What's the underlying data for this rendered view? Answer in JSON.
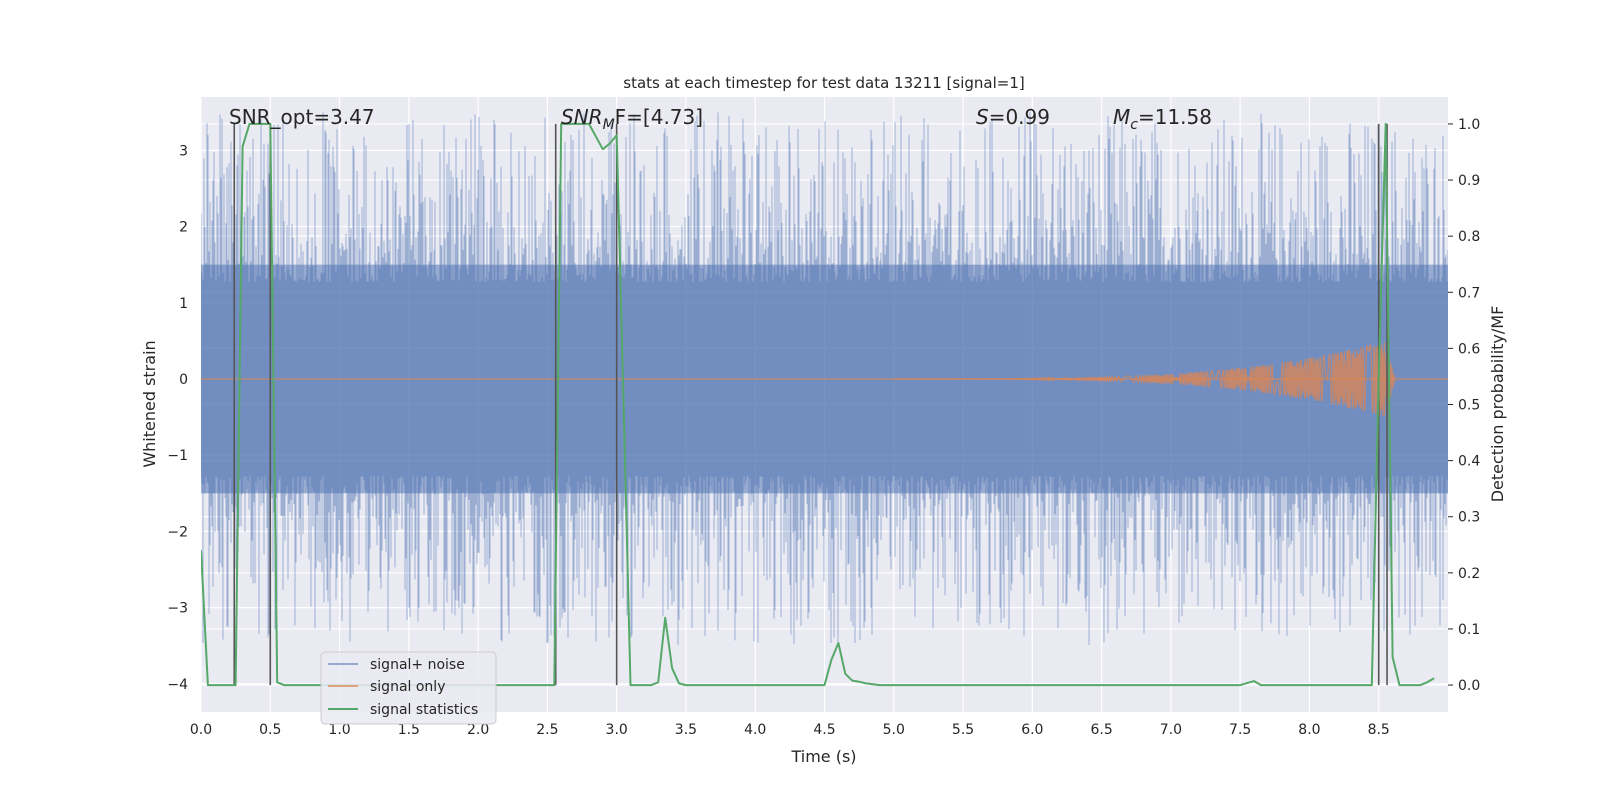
{
  "chart_data": {
    "type": "line",
    "title": "stats at each timestep for test data 13211 [signal=1]",
    "xlabel": "Time (s)",
    "ylabel_left": "Whitened strain",
    "ylabel_right": "Detection probability/MF",
    "xlim": [
      0.0,
      9.0
    ],
    "ylim_left": [
      -4.37,
      3.7
    ],
    "ylim_right": [
      -0.048,
      1.048
    ],
    "x_ticks": [
      0.0,
      0.5,
      1.0,
      1.5,
      2.0,
      2.5,
      3.0,
      3.5,
      4.0,
      4.5,
      5.0,
      5.5,
      6.0,
      6.5,
      7.0,
      7.5,
      8.0,
      8.5
    ],
    "x_tick_labels": [
      "0.0",
      "0.5",
      "1.0",
      "1.5",
      "2.0",
      "2.5",
      "3.0",
      "3.5",
      "4.0",
      "4.5",
      "5.0",
      "5.5",
      "6.0",
      "6.5",
      "7.0",
      "7.5",
      "8.0",
      "8.5"
    ],
    "y_left_ticks": [
      3,
      2,
      1,
      0,
      -1,
      -2,
      -3,
      -4
    ],
    "y_left_tick_labels": [
      "3",
      "2",
      "1",
      "0",
      "−1",
      "−2",
      "−3",
      "−4"
    ],
    "y_right_ticks": [
      1.0,
      0.9,
      0.8,
      0.7,
      0.6,
      0.5,
      0.4,
      0.3,
      0.2,
      0.1,
      0.0
    ],
    "y_right_tick_labels": [
      "1.0",
      "0.9",
      "0.8",
      "0.7",
      "0.6",
      "0.5",
      "0.4",
      "0.3",
      "0.2",
      "0.1",
      "0.0"
    ],
    "grid": true,
    "legend_position": "lower-left",
    "annotations": {
      "snr_opt": "SNR_opt=3.47",
      "snr_mf_prefix": "SNR",
      "snr_mf_sub": "M",
      "snr_mf_suffix": "F=[4.73]",
      "s_prefix": "S",
      "s_suffix": "=0.99",
      "mc_prefix": "M",
      "mc_sub": "c",
      "mc_suffix": "=11.58"
    },
    "series": [
      {
        "name": "signal+ noise",
        "axis": "left",
        "color": "#4c72b0",
        "description_kind": "noise band",
        "band_center": 0.0,
        "band_core_amplitude": 1.5,
        "peak_amplitude": 3.5
      },
      {
        "name": "signal only",
        "axis": "left",
        "color": "#dd8452",
        "kind": "chirp",
        "chirp_start": 5.0,
        "chirp_peak_time": 8.55,
        "chirp_end": 8.62,
        "chirp_peak_amplitude": 0.5
      },
      {
        "name": "signal statistics",
        "axis": "right",
        "color": "#55a868",
        "x": [
          0.0,
          0.05,
          0.1,
          0.15,
          0.2,
          0.25,
          0.3,
          0.35,
          0.4,
          0.45,
          0.5,
          0.55,
          0.6,
          0.7,
          0.8,
          1.0,
          1.5,
          2.0,
          2.5,
          2.55,
          2.6,
          2.65,
          2.7,
          2.8,
          2.9,
          2.95,
          3.0,
          3.05,
          3.1,
          3.15,
          3.2,
          3.25,
          3.3,
          3.35,
          3.4,
          3.45,
          3.5,
          3.55,
          3.6,
          4.0,
          4.5,
          4.55,
          4.6,
          4.65,
          4.7,
          4.75,
          4.8,
          4.9,
          5.0,
          5.5,
          6.0,
          6.5,
          7.0,
          7.5,
          7.6,
          7.65,
          7.7,
          8.0,
          8.4,
          8.45,
          8.5,
          8.55,
          8.6,
          8.65,
          8.7,
          8.8,
          8.85,
          8.9
        ],
        "y": [
          0.24,
          0.0,
          0.0,
          0.0,
          0.0,
          0.0,
          0.96,
          1.0,
          1.0,
          1.0,
          1.0,
          0.005,
          0.0,
          0.0,
          0.0,
          0.0,
          0.0,
          0.0,
          0.0,
          0.0,
          1.0,
          1.0,
          1.0,
          1.0,
          0.955,
          0.965,
          0.98,
          0.5,
          0.0,
          0.0,
          0.0,
          0.0,
          0.005,
          0.12,
          0.03,
          0.003,
          0.0,
          0.0,
          0.0,
          0.0,
          0.0,
          0.045,
          0.075,
          0.02,
          0.008,
          0.006,
          0.003,
          0.0,
          0.0,
          0.0,
          0.0,
          0.0,
          0.0,
          0.0,
          0.007,
          0.0,
          0.0,
          0.0,
          0.0,
          0.0,
          0.55,
          1.0,
          0.05,
          0.0,
          0.0,
          0.0,
          0.005,
          0.012
        ]
      }
    ],
    "vertical_markers": [
      {
        "x": 0.24,
        "y_top": 1.0,
        "y_bottom": 0.0
      },
      {
        "x": 0.5,
        "y_top": 1.0,
        "y_bottom": 0.0
      },
      {
        "x": 2.56,
        "y_top": 1.0,
        "y_bottom": 0.0
      },
      {
        "x": 3.0,
        "y_top": 1.0,
        "y_bottom": 0.0
      },
      {
        "x": 8.5,
        "y_top": 1.0,
        "y_bottom": 0.0
      },
      {
        "x": 8.56,
        "y_top": 1.0,
        "y_bottom": 0.0
      }
    ],
    "legend": [
      "signal+ noise",
      "signal only",
      "signal statistics"
    ]
  }
}
